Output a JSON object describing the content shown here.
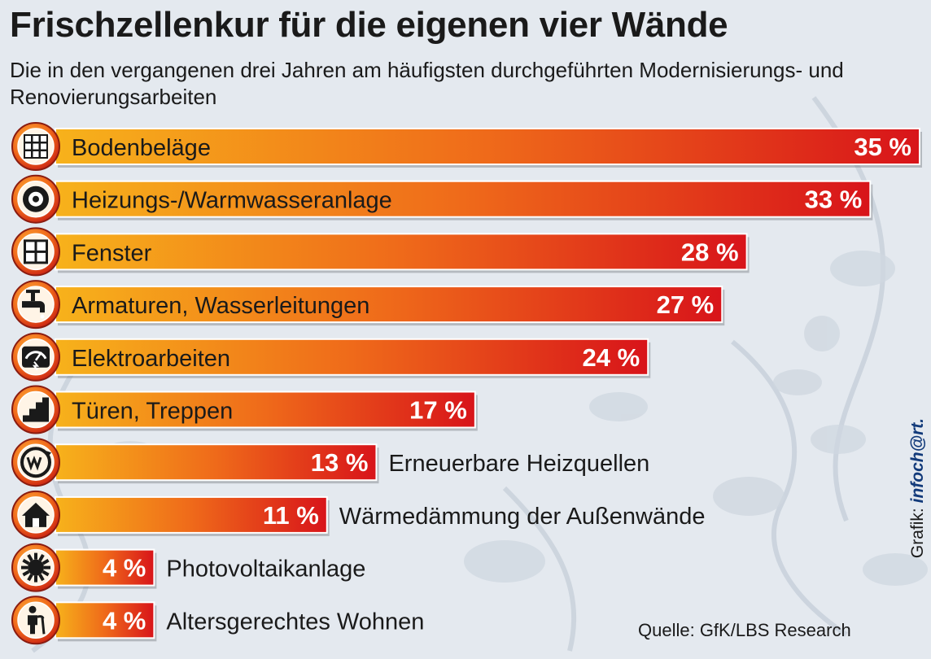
{
  "chart_data": {
    "type": "bar",
    "orientation": "horizontal",
    "title": "Frischzellenkur für die eigenen vier Wände",
    "subtitle": "Die in den vergangenen drei Jahren am häufigsten durchgeführten Modernisierungs- und Renovierungsarbeiten",
    "categories": [
      "Bodenbeläge",
      "Heizungs-/Warmwasseranlage",
      "Fenster",
      "Armaturen, Wasserleitungen",
      "Elektroarbeiten",
      "Türen, Treppen",
      "Erneuerbare Heizquellen",
      "Wärmedämmung der Außenwände",
      "Photovoltaikanlage",
      "Altersgerechtes Wohnen"
    ],
    "values": [
      35,
      33,
      28,
      27,
      24,
      17,
      13,
      11,
      4,
      4
    ],
    "value_labels": [
      "35 %",
      "33 %",
      "28 %",
      "27 %",
      "24 %",
      "17 %",
      "13 %",
      "11 %",
      "4 %",
      "4 %"
    ],
    "icons": [
      "floor-tiles-icon",
      "heating-icon",
      "window-icon",
      "faucet-icon",
      "electric-meter-icon",
      "stairs-icon",
      "renewable-heat-icon",
      "house-insulation-icon",
      "sun-panel-icon",
      "senior-person-icon"
    ],
    "unit": "%",
    "xlim": [
      0,
      35
    ],
    "grid": false,
    "legend": "none",
    "colors": {
      "bar_start": "#f7b21b",
      "bar_mid": "#ef6a1a",
      "bar_end": "#d8141a",
      "icon_ring": "#e0401a"
    }
  },
  "credit": {
    "prefix": "Grafik: ",
    "brand": "infoch@rt."
  },
  "source": "Quelle: GfK/LBS Research"
}
